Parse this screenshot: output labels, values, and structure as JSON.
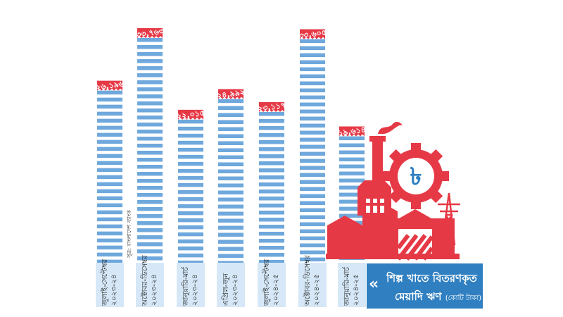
{
  "chart_data": {
    "type": "bar",
    "title": "শিল্প খাতে বিতরণকৃত মেয়াদি ঋণ",
    "unit": "(কোটি টাকা)",
    "source": "সূত্র: বাংলাদেশ ব্যাংক",
    "categories": [
      "জুলাই-সেপ্টেম্বর ২০২৩-২৪",
      "অক্টোবর-ডিসেম্বর ২০২৩-২৪",
      "জানুয়ারি-মার্চ ২০২৩-২৪",
      "এপ্রিল-জুন ২০২৩-২৪",
      "জুলাই-সেপ্টেম্বর ২০২৪-২৫",
      "অক্টোবর-ডিসেম্বর ২০২৪-২৫",
      "জানুয়ারি-মার্চ ২০২৪-২৫"
    ],
    "values": [
      26196,
      33763,
      22015,
      24992,
      23117,
      33605,
      19614
    ],
    "value_labels": [
      "২৬,১৯৬",
      "৩৩,৭৬৩",
      "২২,০১৫",
      "২৪,৯৯২",
      "২৩,১১৭",
      "৩৩,৬০৫",
      "১৯,৬১৪"
    ],
    "colors": {
      "bar_stripe": "#6fa8dc",
      "label_tag": "#e63946",
      "category_box": "#d6e8f7",
      "title_box": "#2f7fc1",
      "factory": "#e63946"
    }
  }
}
